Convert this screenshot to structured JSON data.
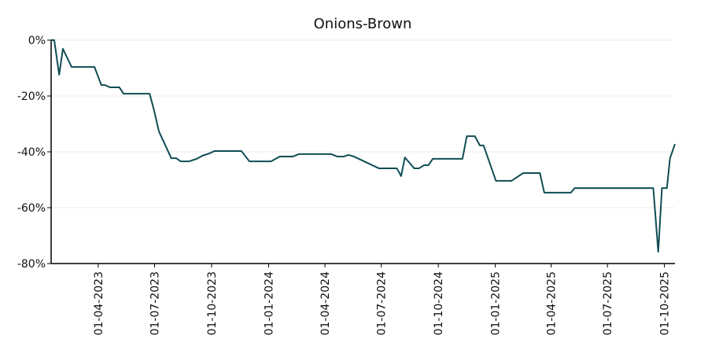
{
  "chart_data": {
    "type": "line",
    "title": "Onions-Brown",
    "x": [
      "2023-01-15",
      "2023-01-20",
      "2023-01-28",
      "2023-02-03",
      "2023-02-17",
      "2023-03-26",
      "2023-04-06",
      "2023-04-12",
      "2023-04-20",
      "2023-05-05",
      "2023-05-12",
      "2023-06-23",
      "2023-06-30",
      "2023-07-08",
      "2023-07-28",
      "2023-08-05",
      "2023-08-12",
      "2023-08-26",
      "2023-09-07",
      "2023-09-16",
      "2023-09-27",
      "2023-10-06",
      "2023-11-18",
      "2023-12-01",
      "2024-01-05",
      "2024-01-19",
      "2024-02-09",
      "2024-02-19",
      "2024-04-11",
      "2024-04-21",
      "2024-05-01",
      "2024-05-09",
      "2024-05-18",
      "2024-06-27",
      "2024-07-26",
      "2024-08-02",
      "2024-08-08",
      "2024-08-23",
      "2024-08-31",
      "2024-09-08",
      "2024-09-15",
      "2024-09-22",
      "2024-11-09",
      "2024-11-16",
      "2024-11-29",
      "2024-12-07",
      "2024-12-13",
      "2025-01-02",
      "2025-01-27",
      "2025-02-15",
      "2025-03-14",
      "2025-03-21",
      "2025-05-03",
      "2025-05-09",
      "2025-09-13",
      "2025-09-21",
      "2025-09-27",
      "2025-10-05",
      "2025-10-10",
      "2025-10-18"
    ],
    "series": [
      {
        "name": "Onions-Brown",
        "color": "#0f4d54",
        "values": [
          0,
          0,
          -12.4,
          -3.1,
          -9.6,
          -9.6,
          -16.1,
          -16.1,
          -16.9,
          -16.9,
          -19.2,
          -19.2,
          -25,
          -32.7,
          -42.3,
          -42.3,
          -43.4,
          -43.4,
          -42.5,
          -41.4,
          -40.6,
          -39.7,
          -39.7,
          -43.4,
          -43.4,
          -41.7,
          -41.7,
          -40.8,
          -40.8,
          -41.7,
          -41.7,
          -41.1,
          -41.7,
          -45.9,
          -45.9,
          -48.7,
          -42,
          -45.9,
          -45.9,
          -44.8,
          -44.8,
          -42.5,
          -42.5,
          -34.4,
          -34.4,
          -37.7,
          -37.7,
          -50.4,
          -50.4,
          -47.6,
          -47.6,
          -54.6,
          -54.6,
          -53,
          -53,
          -75.8,
          -53,
          -53,
          -42.3,
          -37.2
        ]
      }
    ],
    "xlim": [
      "2023-01-15",
      "2025-10-18"
    ],
    "xticks": [
      {
        "value": "2023-04-01",
        "label": "01-04-2023"
      },
      {
        "value": "2023-07-01",
        "label": "01-07-2023"
      },
      {
        "value": "2023-10-01",
        "label": "01-10-2023"
      },
      {
        "value": "2024-01-01",
        "label": "01-01-2024"
      },
      {
        "value": "2024-04-01",
        "label": "01-04-2024"
      },
      {
        "value": "2024-07-01",
        "label": "01-07-2024"
      },
      {
        "value": "2024-10-01",
        "label": "01-10-2024"
      },
      {
        "value": "2025-01-01",
        "label": "01-01-2025"
      },
      {
        "value": "2025-04-01",
        "label": "01-04-2025"
      },
      {
        "value": "2025-07-01",
        "label": "01-07-2025"
      },
      {
        "value": "2025-10-01",
        "label": "01-10-2025"
      }
    ],
    "ylim": [
      -80,
      0
    ],
    "yticks": [
      {
        "value": 0,
        "label": "0%"
      },
      {
        "value": -20,
        "label": "-20%"
      },
      {
        "value": -40,
        "label": "-40%"
      },
      {
        "value": -60,
        "label": "-60%"
      },
      {
        "value": -80,
        "label": "-80%"
      }
    ],
    "grid": true
  }
}
